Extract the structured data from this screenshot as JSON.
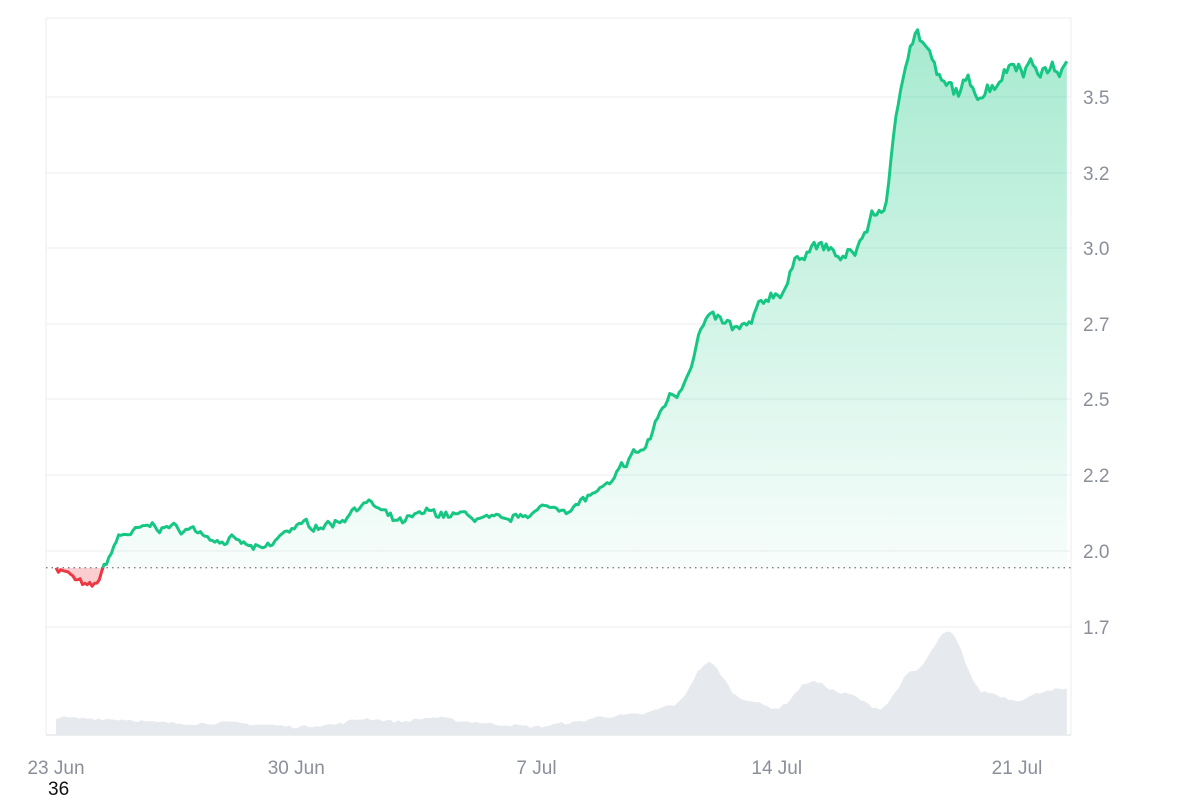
{
  "chart_data": {
    "type": "area",
    "x_ticks": [
      "23 Jun",
      "30 Jun",
      "7 Jul",
      "14 Jul",
      "21 Jul"
    ],
    "y_ticks": [
      "1.7",
      "2.0",
      "2.2",
      "2.5",
      "2.7",
      "3.0",
      "3.2",
      "3.5"
    ],
    "ylim": [
      1.55,
      3.65
    ],
    "baseline": 2.04,
    "grid": true,
    "colors": {
      "up": "#16c784",
      "down": "#ea3943",
      "volume": "#e6e9ee",
      "grid": "#eceef2"
    },
    "price_series": {
      "x": [
        "2024-06-23",
        "2024-06-24",
        "2024-06-25",
        "2024-06-26",
        "2024-06-27",
        "2024-06-28",
        "2024-06-29",
        "2024-06-30",
        "2024-07-01",
        "2024-07-02",
        "2024-07-03",
        "2024-07-04",
        "2024-07-05",
        "2024-07-06",
        "2024-07-07",
        "2024-07-08",
        "2024-07-09",
        "2024-07-10",
        "2024-07-11",
        "2024-07-12",
        "2024-07-13",
        "2024-07-14",
        "2024-07-15",
        "2024-07-16",
        "2024-07-17",
        "2024-07-18",
        "2024-07-19",
        "2024-07-20",
        "2024-07-21",
        "2024-07-22"
      ],
      "y": [
        2.04,
        1.98,
        2.14,
        2.16,
        2.15,
        2.12,
        2.09,
        2.16,
        2.17,
        2.23,
        2.17,
        2.2,
        2.19,
        2.17,
        2.21,
        2.22,
        2.27,
        2.38,
        2.55,
        2.76,
        2.73,
        2.85,
        2.99,
        2.94,
        3.08,
        3.62,
        3.43,
        3.45,
        3.53,
        3.5
      ]
    },
    "volume_series": {
      "x": [
        "2024-06-23",
        "2024-06-24",
        "2024-06-25",
        "2024-06-26",
        "2024-06-27",
        "2024-06-28",
        "2024-06-29",
        "2024-06-30",
        "2024-07-01",
        "2024-07-02",
        "2024-07-03",
        "2024-07-04",
        "2024-07-05",
        "2024-07-06",
        "2024-07-07",
        "2024-07-08",
        "2024-07-09",
        "2024-07-10",
        "2024-07-11",
        "2024-07-12",
        "2024-07-13",
        "2024-07-14",
        "2024-07-15",
        "2024-07-16",
        "2024-07-17",
        "2024-07-18",
        "2024-07-19",
        "2024-07-20",
        "2024-07-21",
        "2024-07-22"
      ],
      "relative": [
        0.17,
        0.16,
        0.15,
        0.12,
        0.11,
        0.12,
        0.1,
        0.08,
        0.1,
        0.16,
        0.13,
        0.17,
        0.13,
        0.1,
        0.08,
        0.12,
        0.18,
        0.2,
        0.29,
        0.7,
        0.35,
        0.26,
        0.52,
        0.4,
        0.26,
        0.62,
        1.0,
        0.42,
        0.34,
        0.44
      ]
    }
  },
  "footer": {
    "label": "36"
  }
}
